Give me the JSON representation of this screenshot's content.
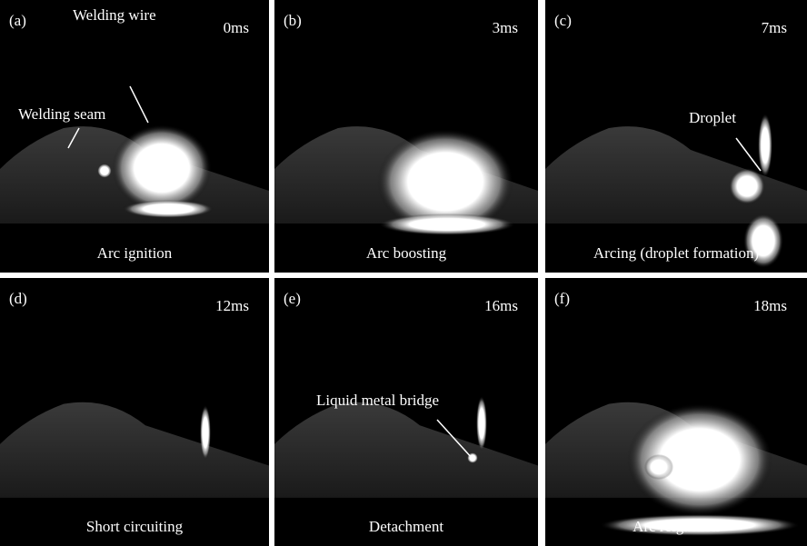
{
  "panels": [
    {
      "label": "(a)",
      "time": "0ms",
      "caption": "Arc ignition",
      "annotations": [
        {
          "text": "Welding wire"
        },
        {
          "text": "Welding seam"
        }
      ]
    },
    {
      "label": "(b)",
      "time": "3ms",
      "caption": "Arc boosting",
      "annotations": []
    },
    {
      "label": "(c)",
      "time": "7ms",
      "caption": "Arcing (droplet formation)",
      "annotations": [
        {
          "text": "Droplet"
        }
      ]
    },
    {
      "label": "(d)",
      "time": "12ms",
      "caption": "Short circuiting",
      "annotations": []
    },
    {
      "label": "(e)",
      "time": "16ms",
      "caption": "Detachment",
      "annotations": [
        {
          "text": "Liquid metal bridge"
        }
      ]
    },
    {
      "label": "(f)",
      "time": "18ms",
      "caption": "Arc reignition",
      "annotations": []
    }
  ]
}
